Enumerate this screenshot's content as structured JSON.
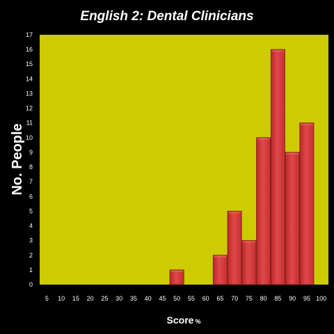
{
  "colors": {
    "background": "#000000",
    "plot_area": "#cccc00",
    "bar_fill": "#d83c3c",
    "bar_edge": "#7a1a1a",
    "text": "#ffffff"
  },
  "chart_data": {
    "type": "bar",
    "title": "English 2: Dental Clinicians",
    "xlabel": "Score",
    "xlabel_unit": "%",
    "ylabel": "No. People",
    "categories": [
      "5",
      "10",
      "15",
      "20",
      "25",
      "30",
      "35",
      "40",
      "45",
      "50",
      "55",
      "60",
      "65",
      "70",
      "75",
      "80",
      "85",
      "90",
      "95",
      "100"
    ],
    "values": [
      0,
      0,
      0,
      0,
      0,
      0,
      0,
      0,
      0,
      1,
      0,
      0,
      2,
      5,
      3,
      10,
      16,
      9,
      11,
      0
    ],
    "yticks": [
      0,
      1,
      2,
      3,
      4,
      5,
      6,
      7,
      8,
      9,
      10,
      11,
      12,
      13,
      14,
      15,
      16,
      17
    ],
    "ylim": [
      0,
      17
    ],
    "grid": false,
    "legend": "none"
  }
}
